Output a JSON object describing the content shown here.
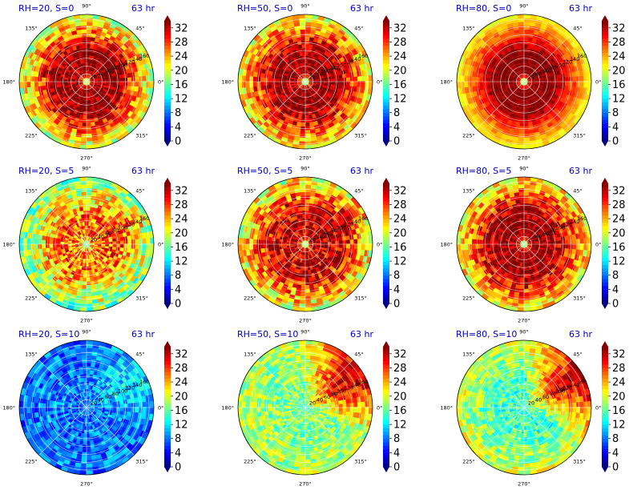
{
  "colors": {
    "title": "#0000cc",
    "grid": "#ffffff",
    "outline": "#000000"
  },
  "colormap": "jet",
  "chart_data": [
    {
      "type": "heatmap",
      "projection": "polar",
      "title_left": "RH=20, S=0",
      "title_right": "63 hr",
      "theta_ticks": [
        "45°",
        "90°",
        "135°",
        "180°",
        "225°",
        "270°",
        "315°",
        "0°"
      ],
      "r_ticks": [
        "20",
        "40",
        "60",
        "80",
        "100",
        "120",
        "140",
        "160"
      ],
      "colorbar": {
        "ticks": [
          0,
          4,
          8,
          12,
          16,
          20,
          24,
          28,
          32
        ],
        "range": [
          0,
          34
        ]
      },
      "field": {
        "center_min": 14,
        "inner_ring": 34,
        "outer_edge": 19,
        "noise": 5,
        "wedge_boost": 0,
        "wedge_angle": 45
      }
    },
    {
      "type": "heatmap",
      "projection": "polar",
      "title_left": "RH=50, S=0",
      "title_right": "63 hr",
      "theta_ticks": [
        "45°",
        "90°",
        "135°",
        "180°",
        "225°",
        "270°",
        "315°",
        "0°"
      ],
      "r_ticks": [
        "20",
        "40",
        "60",
        "80",
        "100",
        "120",
        "140",
        "160"
      ],
      "colorbar": {
        "ticks": [
          0,
          4,
          8,
          12,
          16,
          20,
          24,
          28,
          32
        ],
        "range": [
          0,
          34
        ]
      },
      "field": {
        "center_min": 12,
        "inner_ring": 34,
        "outer_edge": 21,
        "noise": 5,
        "wedge_boost": 0,
        "wedge_angle": 45
      }
    },
    {
      "type": "heatmap",
      "projection": "polar",
      "title_left": "RH=80, S=0",
      "title_right": "63 hr",
      "theta_ticks": [
        "45°",
        "90°",
        "135°",
        "180°",
        "225°",
        "270°",
        "315°",
        "0°"
      ],
      "r_ticks": [
        "20",
        "40",
        "60",
        "80",
        "100",
        "120",
        "140",
        "160"
      ],
      "colorbar": {
        "ticks": [
          0,
          4,
          8,
          12,
          16,
          20,
          24,
          28,
          32
        ],
        "range": [
          0,
          34
        ]
      },
      "field": {
        "center_min": 12,
        "inner_ring": 34,
        "outer_edge": 21,
        "noise": 2,
        "wedge_boost": 0,
        "wedge_angle": 45
      }
    },
    {
      "type": "heatmap",
      "projection": "polar",
      "title_left": "RH=20, S=5",
      "title_right": "63 hr",
      "theta_ticks": [
        "45°",
        "90°",
        "135°",
        "180°",
        "225°",
        "270°",
        "315°",
        "0°"
      ],
      "r_ticks": [
        "20",
        "40",
        "60",
        "80",
        "100",
        "120",
        "140",
        "160"
      ],
      "colorbar": {
        "ticks": [
          0,
          4,
          8,
          12,
          16,
          20,
          24,
          28,
          32
        ],
        "range": [
          0,
          34
        ]
      },
      "field": {
        "center_min": 13,
        "inner_ring": 26,
        "outer_edge": 16,
        "noise": 6,
        "wedge_boost": 3,
        "wedge_angle": 30
      }
    },
    {
      "type": "heatmap",
      "projection": "polar",
      "title_left": "RH=50, S=5",
      "title_right": "63 hr",
      "theta_ticks": [
        "45°",
        "90°",
        "135°",
        "180°",
        "225°",
        "270°",
        "315°",
        "0°"
      ],
      "r_ticks": [
        "20",
        "40",
        "60",
        "80",
        "100",
        "120",
        "140",
        "160"
      ],
      "colorbar": {
        "ticks": [
          0,
          4,
          8,
          12,
          16,
          20,
          24,
          28,
          32
        ],
        "range": [
          0,
          34
        ]
      },
      "field": {
        "center_min": 12,
        "inner_ring": 32,
        "outer_edge": 20,
        "noise": 6,
        "wedge_boost": 2,
        "wedge_angle": 30
      }
    },
    {
      "type": "heatmap",
      "projection": "polar",
      "title_left": "RH=80, S=5",
      "title_right": "63 hr",
      "theta_ticks": [
        "45°",
        "90°",
        "135°",
        "180°",
        "225°",
        "270°",
        "315°",
        "0°"
      ],
      "r_ticks": [
        "20",
        "40",
        "60",
        "80",
        "100",
        "120",
        "140",
        "160"
      ],
      "colorbar": {
        "ticks": [
          0,
          4,
          8,
          12,
          16,
          20,
          24,
          28,
          32
        ],
        "range": [
          0,
          34
        ]
      },
      "field": {
        "center_min": 12,
        "inner_ring": 34,
        "outer_edge": 21,
        "noise": 5,
        "wedge_boost": 0,
        "wedge_angle": 30
      }
    },
    {
      "type": "heatmap",
      "projection": "polar",
      "title_left": "RH=20, S=10",
      "title_right": "63 hr",
      "theta_ticks": [
        "45°",
        "90°",
        "135°",
        "180°",
        "225°",
        "270°",
        "315°",
        "0°"
      ],
      "r_ticks": [
        "20",
        "40",
        "60",
        "80",
        "100",
        "120",
        "140",
        "160"
      ],
      "colorbar": {
        "ticks": [
          0,
          4,
          8,
          12,
          16,
          20,
          24,
          28,
          32
        ],
        "range": [
          0,
          34
        ]
      },
      "field": {
        "center_min": 9,
        "inner_ring": 8,
        "outer_edge": 8,
        "noise": 4,
        "wedge_boost": 4,
        "wedge_angle": 30
      }
    },
    {
      "type": "heatmap",
      "projection": "polar",
      "title_left": "RH=50, S=10",
      "title_right": "63 hr",
      "theta_ticks": [
        "45°",
        "90°",
        "135°",
        "180°",
        "225°",
        "270°",
        "315°",
        "0°"
      ],
      "r_ticks": [
        "20",
        "40",
        "60",
        "80",
        "100",
        "120",
        "140",
        "160"
      ],
      "colorbar": {
        "ticks": [
          0,
          4,
          8,
          12,
          16,
          20,
          24,
          28,
          32
        ],
        "range": [
          0,
          34
        ]
      },
      "field": {
        "center_min": 14,
        "inner_ring": 17,
        "outer_edge": 19,
        "noise": 4,
        "wedge_boost": 14,
        "wedge_angle": 35
      }
    },
    {
      "type": "heatmap",
      "projection": "polar",
      "title_left": "RH=80, S=10",
      "title_right": "63 hr",
      "theta_ticks": [
        "45°",
        "90°",
        "135°",
        "180°",
        "225°",
        "270°",
        "315°",
        "0°"
      ],
      "r_ticks": [
        "20",
        "40",
        "60",
        "80",
        "100",
        "120",
        "140",
        "160"
      ],
      "colorbar": {
        "ticks": [
          0,
          4,
          8,
          12,
          16,
          20,
          24,
          28,
          32
        ],
        "range": [
          0,
          34
        ]
      },
      "field": {
        "center_min": 13,
        "inner_ring": 15,
        "outer_edge": 20,
        "noise": 4,
        "wedge_boost": 14,
        "wedge_angle": 30
      }
    }
  ]
}
